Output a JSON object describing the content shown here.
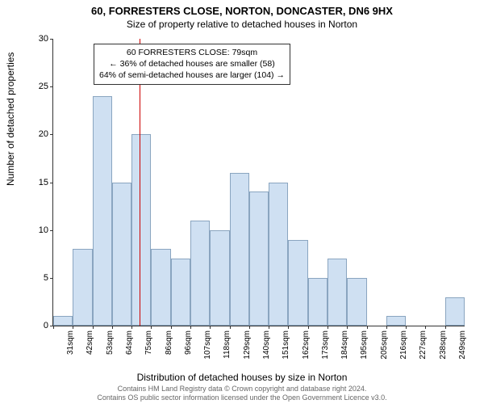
{
  "title": "60, FORRESTERS CLOSE, NORTON, DONCASTER, DN6 9HX",
  "subtitle": "Size of property relative to detached houses in Norton",
  "ylabel": "Number of detached properties",
  "xlabel": "Distribution of detached houses by size in Norton",
  "chart": {
    "type": "histogram",
    "ylim": [
      0,
      30
    ],
    "ytick_step": 5,
    "yticks": [
      0,
      5,
      10,
      15,
      20,
      25,
      30
    ],
    "categories": [
      "31sqm",
      "42sqm",
      "53sqm",
      "64sqm",
      "75sqm",
      "86sqm",
      "96sqm",
      "107sqm",
      "118sqm",
      "129sqm",
      "140sqm",
      "151sqm",
      "162sqm",
      "173sqm",
      "184sqm",
      "195sqm",
      "205sqm",
      "216sqm",
      "227sqm",
      "238sqm",
      "249sqm"
    ],
    "values": [
      1,
      8,
      24,
      15,
      20,
      8,
      7,
      11,
      10,
      16,
      14,
      15,
      9,
      5,
      7,
      5,
      0,
      1,
      0,
      0,
      3
    ],
    "bar_color": "#cfe0f2",
    "bar_border": "#8aa5c0",
    "background_color": "#ffffff",
    "marker_index": 4,
    "marker_color": "#cc0000",
    "bar_width_ratio": 1.0
  },
  "annotation": {
    "line1": "60 FORRESTERS CLOSE: 79sqm",
    "line2": "← 36% of detached houses are smaller (58)",
    "line3": "64% of semi-detached houses are larger (104) →"
  },
  "attribution": {
    "line1": "Contains HM Land Registry data © Crown copyright and database right 2024.",
    "line2": "Contains OS public sector information licensed under the Open Government Licence v3.0."
  }
}
